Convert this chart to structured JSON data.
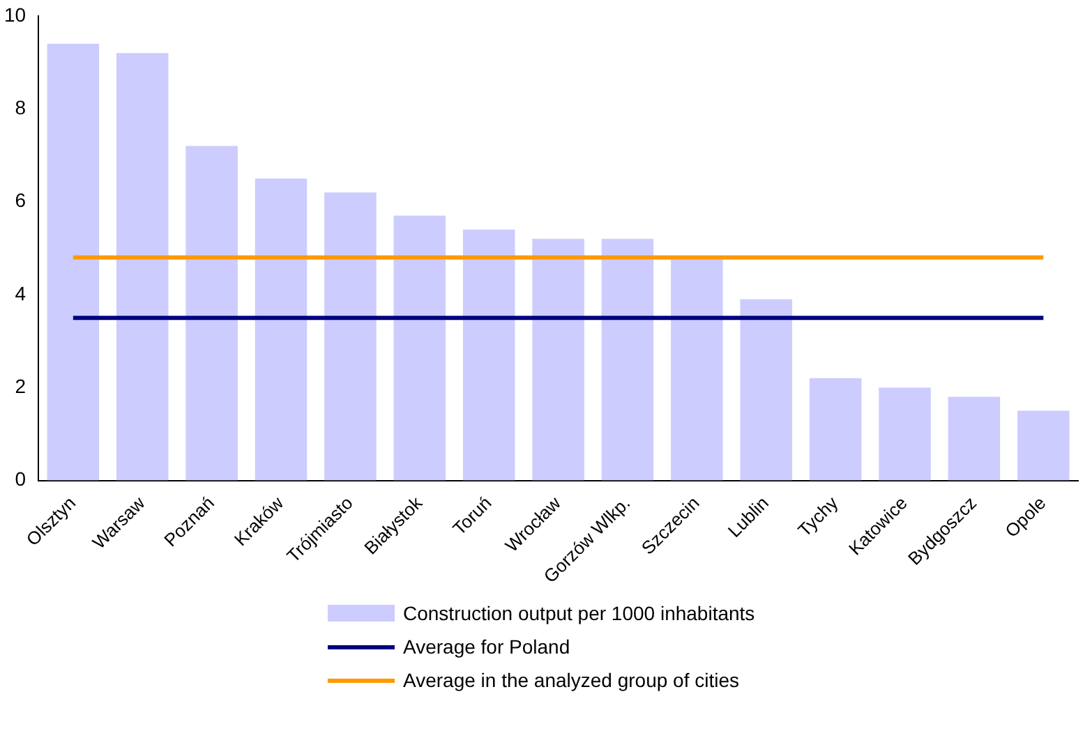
{
  "chart_data": {
    "type": "bar",
    "categories": [
      "Olsztyn",
      "Warsaw",
      "Poznań",
      "Kraków",
      "Trójmiasto",
      "Białystok",
      "Toruń",
      "Wrocław",
      "Gorzów Wlkp.",
      "Szczecin",
      "Lublin",
      "Tychy",
      "Katowice",
      "Bydgoszcz",
      "Opole"
    ],
    "series": [
      {
        "name": "Construction output per 1000 inhabitants",
        "color": "#ccccff",
        "values": [
          9.4,
          9.2,
          7.2,
          6.5,
          6.2,
          5.7,
          5.4,
          5.2,
          5.2,
          4.8,
          3.9,
          2.2,
          2.0,
          1.8,
          1.5
        ]
      },
      {
        "type": "line",
        "name": "Average for Poland",
        "color": "#000080",
        "values": [
          3.5,
          3.5,
          3.5,
          3.5,
          3.5,
          3.5,
          3.5,
          3.5,
          3.5,
          3.5,
          3.5,
          3.5,
          3.5,
          3.5,
          3.5
        ]
      },
      {
        "type": "line",
        "name": "Average in the analyzed group of cities",
        "color": "#ff9900",
        "values": [
          4.8,
          4.8,
          4.8,
          4.8,
          4.8,
          4.8,
          4.8,
          4.8,
          4.8,
          4.8,
          4.8,
          4.8,
          4.8,
          4.8,
          4.8
        ]
      }
    ],
    "ylim": [
      0,
      10
    ],
    "yticks": [
      0,
      2,
      4,
      6,
      8,
      10
    ],
    "grid": false,
    "legend": "bottom",
    "marker": "none"
  }
}
